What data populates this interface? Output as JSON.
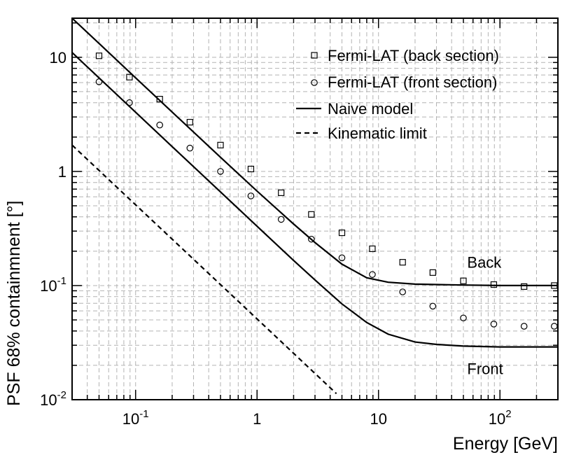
{
  "chart_data": {
    "type": "scatter",
    "xscale": "log",
    "yscale": "log",
    "xlim": [
      0.03,
      300
    ],
    "ylim": [
      0.01,
      22
    ],
    "xlabel": "Energy [GeV]",
    "ylabel": "PSF 68% containmnent [°]",
    "x_tick_labels": [
      {
        "value": 0.1,
        "base": "10",
        "exp": "-1"
      },
      {
        "value": 1,
        "base": "1",
        "exp": ""
      },
      {
        "value": 10,
        "base": "10",
        "exp": ""
      },
      {
        "value": 100,
        "base": "10",
        "exp": "2"
      }
    ],
    "y_tick_labels": [
      {
        "value": 0.01,
        "base": "10",
        "exp": "-2"
      },
      {
        "value": 0.1,
        "base": "10",
        "exp": "-1"
      },
      {
        "value": 1,
        "base": "1",
        "exp": ""
      },
      {
        "value": 10,
        "base": "10",
        "exp": ""
      }
    ],
    "legend_position": "top-right",
    "series": [
      {
        "name": "Fermi-LAT (back section)",
        "kind": "markers",
        "marker": "square",
        "x": [
          0.05,
          0.089,
          0.158,
          0.28,
          0.5,
          0.89,
          1.58,
          2.8,
          5.0,
          8.9,
          15.8,
          28,
          50,
          89,
          158,
          280
        ],
        "y": [
          10.3,
          6.7,
          4.3,
          2.7,
          1.7,
          1.05,
          0.65,
          0.42,
          0.29,
          0.21,
          0.16,
          0.13,
          0.11,
          0.102,
          0.098,
          0.1
        ]
      },
      {
        "name": "Fermi-LAT (front section)",
        "kind": "markers",
        "marker": "circle",
        "x": [
          0.05,
          0.089,
          0.158,
          0.28,
          0.5,
          0.89,
          1.58,
          2.8,
          5.0,
          8.9,
          15.8,
          28,
          50,
          89,
          158,
          280
        ],
        "y": [
          6.1,
          4.0,
          2.55,
          1.6,
          1.0,
          0.61,
          0.38,
          0.255,
          0.175,
          0.125,
          0.088,
          0.066,
          0.052,
          0.046,
          0.044,
          0.044
        ]
      },
      {
        "name": "Naive model",
        "kind": "line",
        "style": "solid",
        "curves": [
          {
            "label": "Back",
            "x": [
              0.03,
              0.05,
              0.1,
              0.2,
              0.5,
              1,
              2,
              3,
              5,
              8,
              12,
              20,
              30,
              50,
              100,
              200,
              300
            ],
            "y": [
              22.01,
              13.21,
              6.61,
              3.31,
              1.33,
              0.672,
              0.346,
              0.238,
              0.154,
              0.117,
              0.107,
              0.103,
              0.102,
              0.101,
              0.1,
              0.1,
              0.1
            ]
          },
          {
            "label": "Front",
            "x": [
              0.03,
              0.05,
              0.1,
              0.2,
              0.5,
              1,
              2,
              3,
              5,
              8,
              12,
              20,
              30,
              50,
              100,
              200,
              300
            ],
            "y": [
              11.0,
              6.6,
              3.3,
              1.65,
              0.661,
              0.331,
              0.166,
              0.112,
              0.069,
              0.0475,
              0.0375,
              0.032,
              0.0305,
              0.0295,
              0.029,
              0.029,
              0.029
            ]
          }
        ]
      },
      {
        "name": "Kinematic limit",
        "kind": "line",
        "style": "dashed",
        "curves": [
          {
            "label": "",
            "x": [
              0.03,
              0.1,
              1,
              4.5
            ],
            "y": [
              1.7,
              0.51,
              0.051,
              0.0113
            ]
          }
        ]
      }
    ],
    "annotations": [
      {
        "text": "Back",
        "x": 80,
        "y": 0.16
      },
      {
        "text": "Front",
        "x": 80,
        "y": 0.0188
      }
    ]
  }
}
